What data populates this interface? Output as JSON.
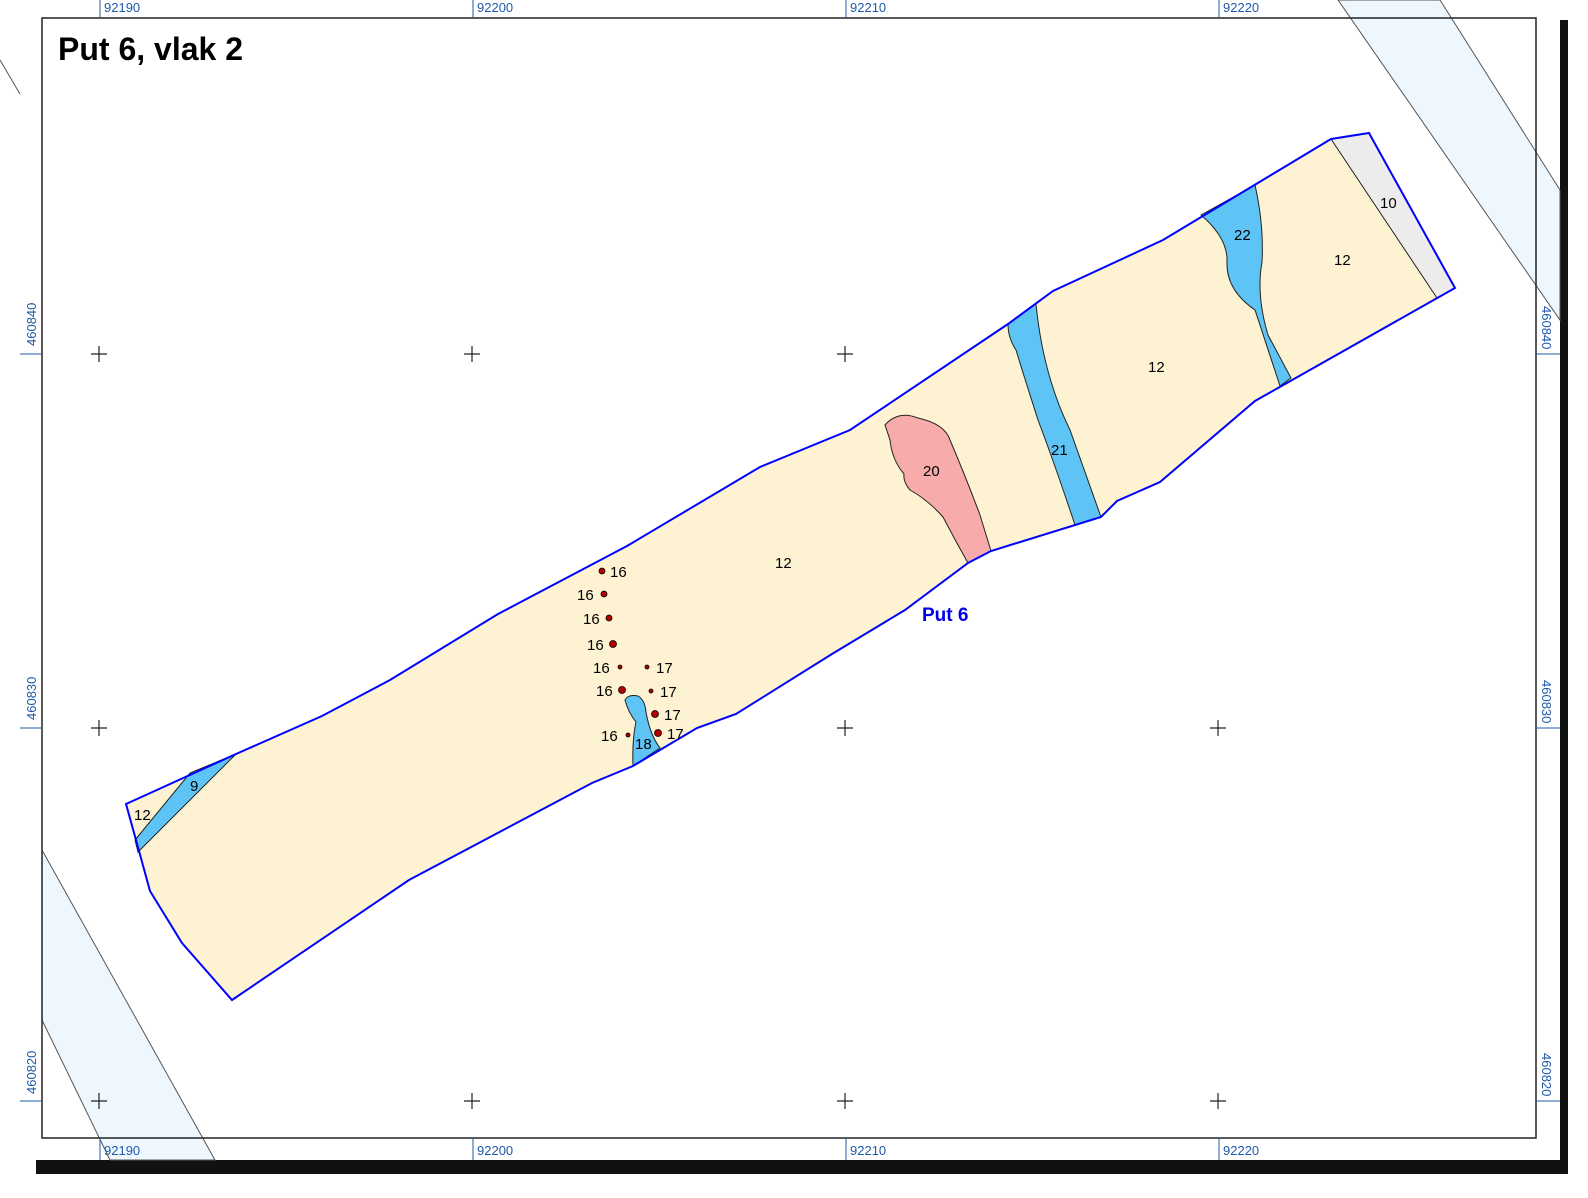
{
  "map_title": "Put 6, vlak 2",
  "trench_label": "Put 6",
  "grid": {
    "x_labels": [
      "92190",
      "92200",
      "92210",
      "92220"
    ],
    "y_labels": [
      "460840",
      "460830",
      "460820"
    ]
  },
  "units": {
    "u12_west": "12",
    "u9": "9",
    "u12_main": "12",
    "u18": "18",
    "u20": "20",
    "u21": "21",
    "u12_east": "12",
    "u22": "22",
    "u12_ne": "12",
    "u10": "10"
  },
  "posthole_labels": [
    "16",
    "16",
    "16",
    "16",
    "16",
    "16",
    "16",
    "17",
    "17",
    "17",
    "17"
  ],
  "colors": {
    "trench_outline": "#0000ff",
    "layer_12_fill": "#fdf3d2",
    "layer_blue_fill": "#5ec4f5",
    "feature_20_fill": "#f7abab",
    "layer_10_fill": "#ececec",
    "posthole_fill": "#b00000",
    "background_band": "#eef7fd",
    "grid_label": "#1f5aa8"
  }
}
